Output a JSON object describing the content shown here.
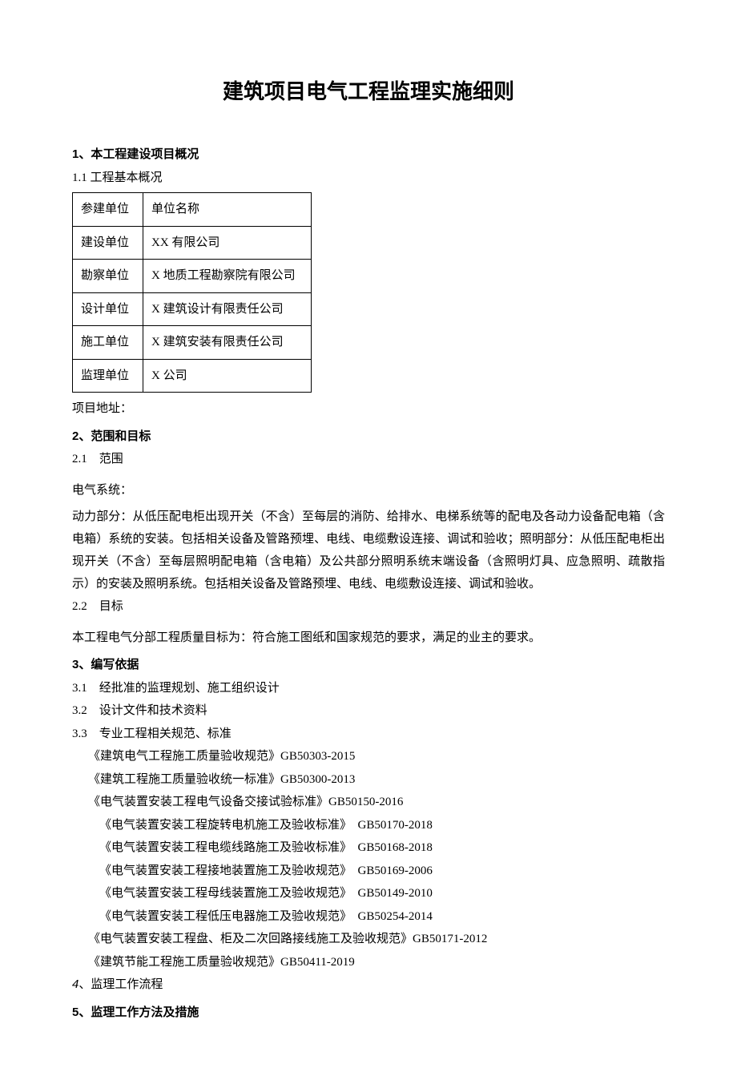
{
  "title": "建筑项目电气工程监理实施细则",
  "s1": {
    "num": "1",
    "heading": "、本工程建设项目概况",
    "sub": "1.1 工程基本概况",
    "table": {
      "r0c0": "参建单位",
      "r0c1": "单位名称",
      "r1c0": "建设单位",
      "r1c1": "XX 有限公司",
      "r2c0": "勘察单位",
      "r2c1": "X 地质工程勘察院有限公司",
      "r3c0": "设计单位",
      "r3c1": "X 建筑设计有限责任公司",
      "r4c0": "施工单位",
      "r4c1": "X 建筑安装有限责任公司",
      "r5c0": "监理单位",
      "r5c1": "X 公司"
    },
    "addr": "项目地址："
  },
  "s2": {
    "num": "2",
    "heading": "、范围和目标",
    "sub1": "2.1　范围",
    "sys": "电气系统：",
    "body": "动力部分：从低压配电柜出现开关（不含）至每层的消防、给排水、电梯系统等的配电及各动力设备配电箱（含电箱）系统的安装。包括相关设备及管路预埋、电线、电缆敷设连接、调试和验收；照明部分：从低压配电柜出现开关（不含）至每层照明配电箱（含电箱）及公共部分照明系统末端设备（含照明灯具、应急照明、疏散指示）的安装及照明系统。包括相关设备及管路预埋、电线、电缆敷设连接、调试和验收。",
    "sub2": "2.2　目标",
    "goal": "本工程电气分部工程质量目标为：符合施工图纸和国家规范的要求，满足的业主的要求。"
  },
  "s3": {
    "num": "3",
    "heading": "、编写依据",
    "l1": "3.1　经批准的监理规划、施工组织设计",
    "l2": "3.2　设计文件和技术资料",
    "l3": "3.3　专业工程相关规范、标准",
    "std1": "《建筑电气工程施工质量验收规范》GB50303-2015",
    "std2": "《建筑工程施工质量验收统一标准》GB50300-2013",
    "std3": "《电气装置安装工程电气设备交接试验标准》GB50150-2016",
    "std4": "《电气装置安装工程旋转电机施工及验收标准》　GB50170-2018",
    "std5": "《电气装置安装工程电缆线路施工及验收标准》　GB50168-2018",
    "std6": "《电气装置安装工程接地装置施工及验收规范》　GB50169-2006",
    "std7": "《电气装置安装工程母线装置施工及验收规范》　GB50149-2010",
    "std8": "《电气装置安装工程低压电器施工及验收规范》　GB50254-2014",
    "std9": "《电气装置安装工程盘、柜及二次回路接线施工及验收规范》GB50171-2012",
    "std10": "《建筑节能工程施工质量验收规范》GB50411-2019"
  },
  "s4": {
    "num": "4",
    "heading": "、监理工作流程"
  },
  "s5": {
    "num": "5",
    "heading": "、监理工作方法及措施"
  }
}
